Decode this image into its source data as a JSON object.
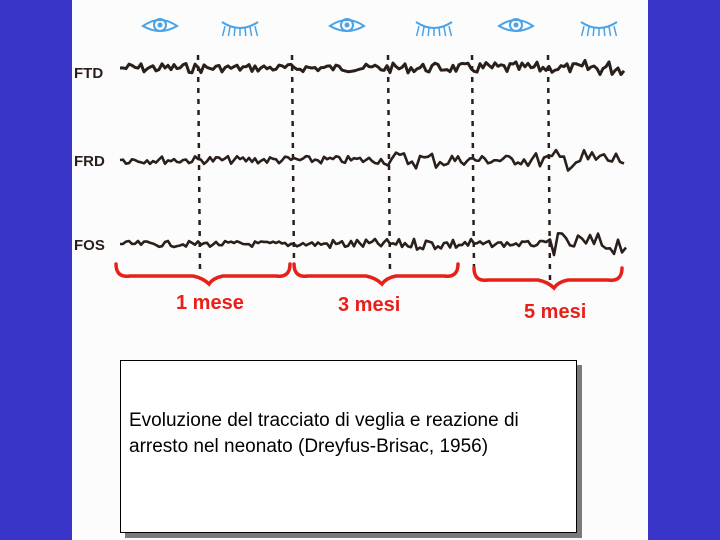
{
  "channels": [
    {
      "label": "FTD"
    },
    {
      "label": "FRD"
    },
    {
      "label": "FOS"
    }
  ],
  "periods": [
    {
      "label": "1 mese"
    },
    {
      "label": "3 mesi"
    },
    {
      "label": "5 mesi"
    }
  ],
  "eye_states": [
    "eye-open-icon",
    "eye-closed-icon",
    "eye-open-icon",
    "eye-closed-icon",
    "eye-open-icon",
    "eye-closed-icon"
  ],
  "colors": {
    "background": "#3a35c9",
    "paper": "#fcfcfc",
    "trace": "#2a1f1a",
    "bracket": "#e8201a",
    "eye": "#4aa3e6"
  },
  "caption": "Evoluzione del tracciato di veglia e reazione di arresto nel neonato (Dreyfus-Brisac, 1956)"
}
